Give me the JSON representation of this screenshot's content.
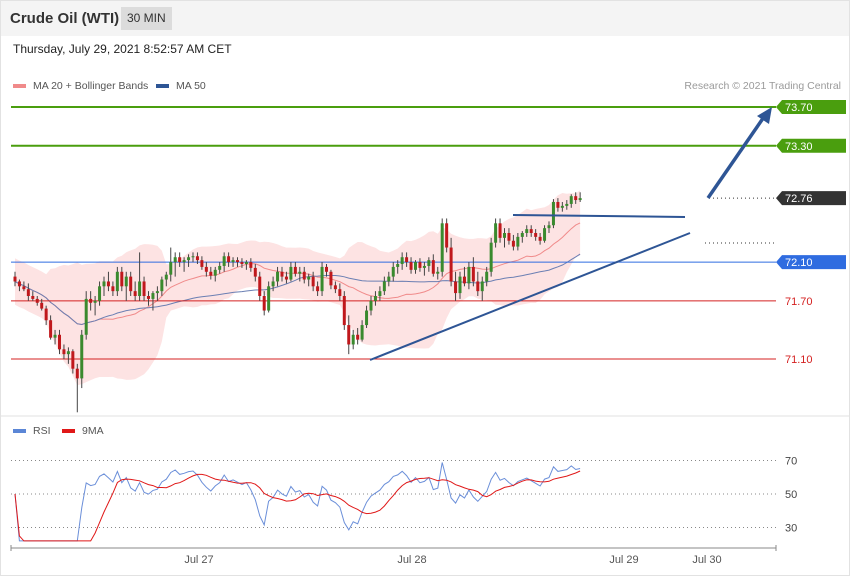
{
  "header": {
    "title": "Crude Oil (WTI)",
    "timeframe": "30 MIN"
  },
  "datetime": "Thursday, July 29, 2021 8:52:57 AM CET",
  "legend": {
    "ma20": {
      "label": "MA 20 + Bollinger Bands",
      "color": "#f08a8a"
    },
    "ma50": {
      "label": "MA 50",
      "color": "#2e5595"
    }
  },
  "credit": "Research © 2021 Trading Central",
  "colors": {
    "up": "#3a8a2e",
    "down": "#c0181c",
    "resistance": "#4a9e0e",
    "pivot": "#2f6ce0",
    "support": "#d42020",
    "last": "#333333",
    "trend": "#2e5595"
  },
  "chart_data": [
    {
      "type": "candlestick",
      "ylim": [
        70.5,
        73.8
      ],
      "x_tick_labels": [
        "Jul 27",
        "Jul 28",
        "Jul 29",
        "Jul 30"
      ],
      "levels": [
        {
          "price": 73.7,
          "label": "73.70",
          "kind": "resistance"
        },
        {
          "price": 73.3,
          "label": "73.30",
          "kind": "resistance"
        },
        {
          "price": 72.76,
          "label": "72.76",
          "kind": "last"
        },
        {
          "price": 72.1,
          "label": "72.10",
          "kind": "pivot"
        },
        {
          "price": 71.7,
          "label": "71.70",
          "kind": "support"
        },
        {
          "price": 71.1,
          "label": "71.10",
          "kind": "support"
        }
      ],
      "ohlc": [
        [
          71.95,
          72.0,
          71.85,
          71.9
        ],
        [
          71.9,
          71.92,
          71.8,
          71.85
        ],
        [
          71.85,
          71.9,
          71.8,
          71.82
        ],
        [
          71.82,
          71.88,
          71.7,
          71.75
        ],
        [
          71.75,
          71.8,
          71.7,
          71.72
        ],
        [
          71.72,
          71.75,
          71.65,
          71.68
        ],
        [
          71.68,
          71.72,
          71.6,
          71.62
        ],
        [
          71.62,
          71.65,
          71.45,
          71.5
        ],
        [
          71.5,
          71.55,
          71.3,
          71.32
        ],
        [
          71.32,
          71.4,
          71.25,
          71.35
        ],
        [
          71.35,
          71.4,
          71.15,
          71.2
        ],
        [
          71.2,
          71.25,
          71.1,
          71.15
        ],
        [
          71.15,
          71.22,
          71.05,
          71.18
        ],
        [
          71.18,
          71.2,
          70.95,
          71.0
        ],
        [
          71.0,
          71.05,
          70.55,
          70.9
        ],
        [
          70.9,
          71.4,
          70.8,
          71.35
        ],
        [
          71.35,
          71.8,
          71.3,
          71.72
        ],
        [
          71.72,
          71.8,
          71.6,
          71.68
        ],
        [
          71.68,
          71.75,
          71.55,
          71.7
        ],
        [
          71.7,
          71.9,
          71.65,
          71.85
        ],
        [
          71.85,
          71.95,
          71.75,
          71.9
        ],
        [
          71.9,
          72.0,
          71.8,
          71.85
        ],
        [
          71.85,
          71.9,
          71.75,
          71.8
        ],
        [
          71.8,
          72.05,
          71.75,
          72.0
        ],
        [
          72.0,
          72.05,
          71.8,
          71.85
        ],
        [
          71.85,
          72.0,
          71.7,
          71.95
        ],
        [
          71.95,
          72.0,
          71.75,
          71.8
        ],
        [
          71.8,
          71.9,
          71.7,
          71.75
        ],
        [
          71.75,
          72.2,
          71.7,
          71.9
        ],
        [
          71.9,
          71.95,
          71.7,
          71.75
        ],
        [
          71.75,
          71.8,
          71.65,
          71.72
        ],
        [
          71.72,
          71.8,
          71.6,
          71.78
        ],
        [
          71.78,
          71.85,
          71.7,
          71.8
        ],
        [
          71.8,
          71.95,
          71.75,
          71.92
        ],
        [
          71.92,
          72.0,
          71.85,
          71.97
        ],
        [
          71.97,
          72.25,
          71.9,
          72.1
        ],
        [
          72.1,
          72.2,
          71.95,
          72.15
        ],
        [
          72.15,
          72.2,
          72.05,
          72.1
        ],
        [
          72.1,
          72.15,
          72.0,
          72.12
        ],
        [
          72.12,
          72.18,
          72.05,
          72.15
        ],
        [
          72.15,
          72.2,
          72.1,
          72.16
        ],
        [
          72.16,
          72.2,
          72.08,
          72.12
        ],
        [
          72.12,
          72.16,
          72.02,
          72.05
        ],
        [
          72.05,
          72.1,
          71.95,
          72.0
        ],
        [
          72.0,
          72.05,
          71.92,
          71.96
        ],
        [
          71.96,
          72.05,
          71.9,
          72.02
        ],
        [
          72.02,
          72.1,
          71.98,
          72.06
        ],
        [
          72.06,
          72.2,
          72.0,
          72.16
        ],
        [
          72.16,
          72.2,
          72.05,
          72.1
        ],
        [
          72.1,
          72.15,
          72.05,
          72.12
        ],
        [
          72.12,
          72.15,
          72.05,
          72.1
        ],
        [
          72.1,
          72.14,
          72.04,
          72.08
        ],
        [
          72.08,
          72.12,
          72.02,
          72.1
        ],
        [
          72.1,
          72.14,
          72.0,
          72.04
        ],
        [
          72.04,
          72.08,
          71.9,
          71.95
        ],
        [
          71.95,
          72.0,
          71.7,
          71.75
        ],
        [
          71.75,
          71.8,
          71.55,
          71.6
        ],
        [
          71.6,
          71.9,
          71.58,
          71.85
        ],
        [
          71.85,
          71.95,
          71.8,
          71.9
        ],
        [
          71.9,
          72.05,
          71.85,
          72.0
        ],
        [
          72.0,
          72.05,
          71.9,
          71.95
        ],
        [
          71.95,
          72.0,
          71.88,
          71.92
        ],
        [
          71.92,
          72.1,
          71.9,
          72.05
        ],
        [
          72.05,
          72.1,
          71.95,
          71.98
        ],
        [
          71.98,
          72.05,
          71.9,
          72.0
        ],
        [
          72.0,
          72.05,
          71.88,
          71.92
        ],
        [
          71.92,
          71.98,
          71.85,
          71.95
        ],
        [
          71.95,
          72.0,
          71.8,
          71.85
        ],
        [
          71.85,
          71.9,
          71.75,
          71.8
        ],
        [
          71.8,
          72.1,
          71.75,
          72.05
        ],
        [
          72.05,
          72.08,
          71.95,
          72.0
        ],
        [
          72.0,
          72.02,
          71.82,
          71.86
        ],
        [
          71.86,
          71.9,
          71.78,
          71.82
        ],
        [
          71.82,
          71.88,
          71.7,
          71.75
        ],
        [
          71.75,
          71.8,
          71.4,
          71.45
        ],
        [
          71.45,
          71.55,
          71.15,
          71.25
        ],
        [
          71.25,
          71.4,
          71.2,
          71.35
        ],
        [
          71.35,
          71.42,
          71.25,
          71.3
        ],
        [
          71.3,
          71.5,
          71.28,
          71.45
        ],
        [
          71.45,
          71.65,
          71.42,
          71.6
        ],
        [
          71.6,
          71.75,
          71.55,
          71.7
        ],
        [
          71.7,
          71.8,
          71.65,
          71.75
        ],
        [
          71.75,
          71.85,
          71.7,
          71.8
        ],
        [
          71.8,
          71.95,
          71.76,
          71.9
        ],
        [
          71.9,
          72.0,
          71.85,
          71.95
        ],
        [
          71.95,
          72.1,
          71.9,
          72.05
        ],
        [
          72.05,
          72.12,
          71.98,
          72.08
        ],
        [
          72.08,
          72.2,
          72.02,
          72.15
        ],
        [
          72.15,
          72.2,
          72.05,
          72.1
        ],
        [
          72.1,
          72.15,
          71.98,
          72.02
        ],
        [
          72.02,
          72.12,
          71.98,
          72.1
        ],
        [
          72.1,
          72.14,
          72.0,
          72.04
        ],
        [
          72.04,
          72.1,
          71.96,
          72.06
        ],
        [
          72.06,
          72.15,
          72.0,
          72.12
        ],
        [
          72.12,
          72.18,
          71.95,
          71.98
        ],
        [
          71.98,
          72.05,
          71.92,
          72.0
        ],
        [
          72.0,
          72.55,
          71.95,
          72.5
        ],
        [
          72.5,
          72.55,
          72.2,
          72.25
        ],
        [
          72.25,
          72.35,
          71.85,
          71.9
        ],
        [
          71.9,
          72.0,
          71.7,
          71.78
        ],
        [
          71.78,
          72.0,
          71.72,
          71.95
        ],
        [
          71.95,
          72.05,
          71.85,
          71.88
        ],
        [
          71.88,
          72.1,
          71.82,
          72.05
        ],
        [
          72.05,
          72.15,
          71.85,
          71.9
        ],
        [
          71.9,
          72.0,
          71.75,
          71.8
        ],
        [
          71.8,
          71.95,
          71.7,
          71.9
        ],
        [
          71.9,
          72.05,
          71.85,
          72.0
        ],
        [
          72.0,
          72.35,
          71.95,
          72.3
        ],
        [
          72.3,
          72.55,
          72.25,
          72.5
        ],
        [
          72.5,
          72.55,
          72.3,
          72.35
        ],
        [
          72.35,
          72.45,
          72.25,
          72.4
        ],
        [
          72.4,
          72.45,
          72.28,
          72.32
        ],
        [
          72.32,
          72.38,
          72.22,
          72.26
        ],
        [
          72.26,
          72.4,
          72.22,
          72.36
        ],
        [
          72.36,
          72.42,
          72.3,
          72.4
        ],
        [
          72.4,
          72.48,
          72.36,
          72.44
        ],
        [
          72.44,
          72.48,
          72.36,
          72.4
        ],
        [
          72.4,
          72.44,
          72.32,
          72.36
        ],
        [
          72.36,
          72.4,
          72.28,
          72.32
        ],
        [
          72.32,
          72.48,
          72.3,
          72.45
        ],
        [
          72.45,
          72.52,
          72.4,
          72.48
        ],
        [
          72.48,
          72.75,
          72.45,
          72.72
        ],
        [
          72.72,
          72.76,
          72.62,
          72.66
        ],
        [
          72.66,
          72.72,
          72.62,
          72.68
        ],
        [
          72.68,
          72.74,
          72.64,
          72.7
        ],
        [
          72.7,
          72.8,
          72.66,
          72.78
        ],
        [
          72.78,
          72.82,
          72.7,
          72.74
        ],
        [
          72.74,
          72.82,
          72.72,
          72.76
        ]
      ],
      "rsi_panel": {
        "series": [
          "RSI",
          "9MA"
        ],
        "ylim": [
          20,
          75
        ],
        "gridlines": [
          70,
          50,
          30
        ]
      }
    }
  ]
}
